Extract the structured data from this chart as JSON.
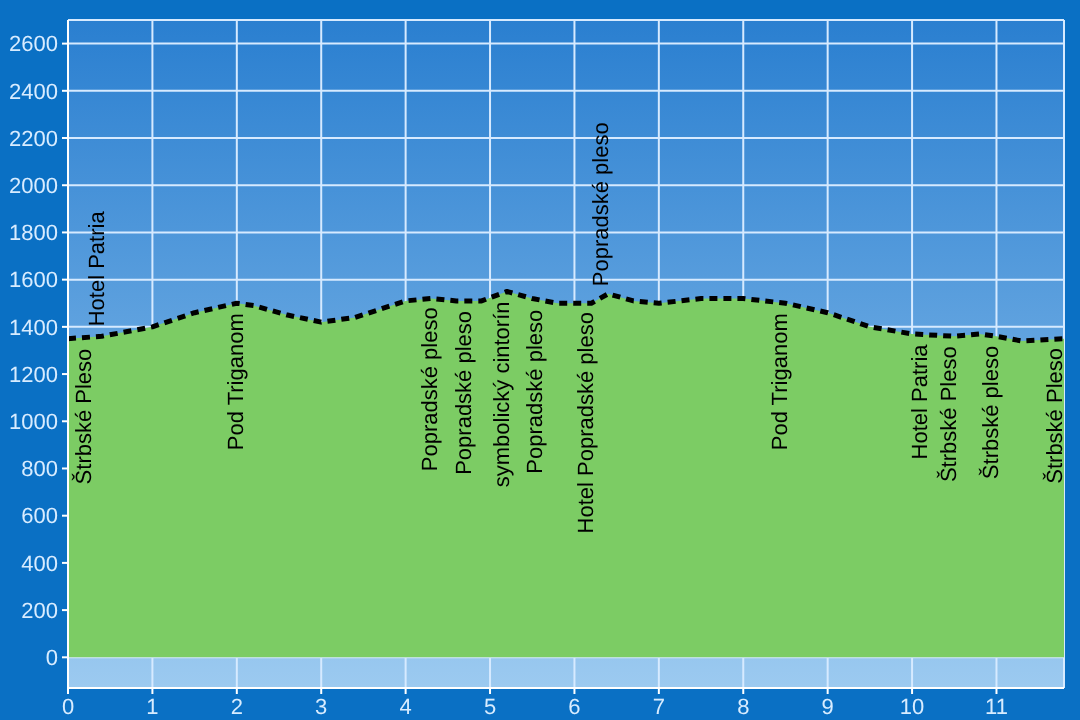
{
  "chart_data": {
    "type": "area",
    "x": [
      0,
      0.4,
      1,
      1.5,
      2,
      2.2,
      2.6,
      3,
      3.4,
      4,
      4.3,
      4.6,
      4.9,
      5.2,
      5.5,
      5.8,
      6.2,
      6.4,
      6.7,
      7,
      7.5,
      8,
      8.5,
      9,
      9.5,
      10,
      10.5,
      10.8,
      11,
      11.3,
      11.8
    ],
    "series": [
      {
        "color": "#7ccc64",
        "values": [
          1350,
          1360,
          1400,
          1460,
          1500,
          1490,
          1450,
          1420,
          1440,
          1510,
          1520,
          1510,
          1510,
          1550,
          1520,
          1500,
          1500,
          1540,
          1510,
          1500,
          1520,
          1520,
          1500,
          1460,
          1400,
          1370,
          1360,
          1370,
          1360,
          1340,
          1350
        ]
      }
    ],
    "xlim": [
      0,
      11.8
    ],
    "ylim": [
      -130,
      2700
    ],
    "xticks": [
      0,
      1,
      2,
      3,
      4,
      5,
      6,
      7,
      8,
      9,
      10,
      11
    ],
    "yticks": [
      0,
      200,
      400,
      600,
      800,
      1000,
      1200,
      1400,
      1600,
      1800,
      2000,
      2200,
      2400,
      2600
    ],
    "grid": true,
    "line_style": "dashed",
    "marker": "none",
    "annotations": [
      {
        "text": "Štrbské Pleso",
        "x": 0.2,
        "y": 1350
      },
      {
        "text": "Hotel Patria",
        "x": 0.35,
        "y": 1360
      },
      {
        "text": "Pod Triganom",
        "x": 2.0,
        "y": 1500
      },
      {
        "text": "Popradské pleso",
        "x": 4.3,
        "y": 1525
      },
      {
        "text": "Popradské pleso",
        "x": 4.7,
        "y": 1510
      },
      {
        "text": "symbolický cintorín",
        "x": 5.15,
        "y": 1550
      },
      {
        "text": "Popradské pleso",
        "x": 5.55,
        "y": 1515
      },
      {
        "text": "Hotel Popradské pleso",
        "x": 6.15,
        "y": 1505
      },
      {
        "text": "Popradské pleso",
        "x": 6.33,
        "y": 1530
      },
      {
        "text": "Pod Triganom",
        "x": 8.45,
        "y": 1500
      },
      {
        "text": "Hotel Patria",
        "x": 10.1,
        "y": 1368
      },
      {
        "text": "Štrbské Pleso",
        "x": 10.45,
        "y": 1360
      },
      {
        "text": "Štrbské pleso",
        "x": 10.95,
        "y": 1362
      },
      {
        "text": "Štrbské Pleso",
        "x": 11.7,
        "y": 1353
      }
    ]
  }
}
